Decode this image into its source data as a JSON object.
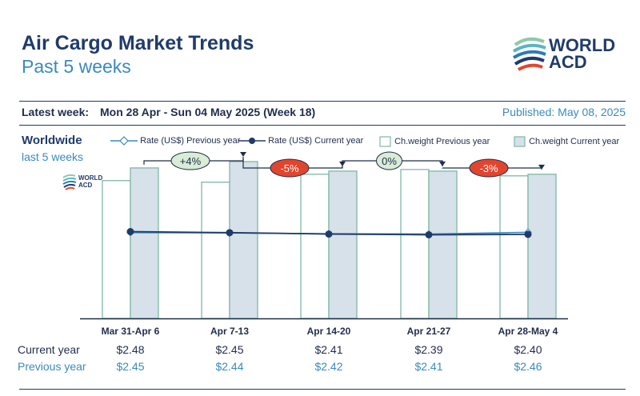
{
  "header": {
    "title": "Air Cargo Market Trends",
    "subtitle": "Past 5 weeks",
    "logo_text_line1": "WORLD",
    "logo_text_line2": "ACD",
    "latest_label": "Latest week:",
    "latest_value": "Mon 28 Apr - Sun 04 May 2025 (Week 18)",
    "published": "Published: May 08, 2025"
  },
  "side": {
    "region": "Worldwide",
    "period": "last 5 weeks"
  },
  "legend": {
    "rate_prev": "Rate (US$) Previous year",
    "rate_cur": "Rate (US$) Current year",
    "cw_prev": "Ch.weight Previous year",
    "cw_cur": "Ch.weight Current year"
  },
  "colors": {
    "navy": "#1f3b6b",
    "blue": "#3a8ac0",
    "bar_prev_fill": "#ffffff",
    "bar_cur_fill": "#d6e1ea",
    "bar_stroke": "#7fb8a0",
    "pos_badge": "#d9ecd4",
    "neg_badge": "#e2452e"
  },
  "table": {
    "current_label": "Current year",
    "previous_label": "Previous year"
  },
  "chart_data": {
    "type": "bar",
    "categories": [
      "Mar 31-Apr 6",
      "Apr 7-13",
      "Apr 14-20",
      "Apr 21-27",
      "Apr 28-May 4"
    ],
    "chargeable_weight_index": {
      "previous_year": [
        87,
        86,
        91,
        94,
        90
      ],
      "current_year": [
        95,
        99,
        93,
        93,
        91
      ]
    },
    "rate_current_year": [
      2.48,
      2.45,
      2.41,
      2.39,
      2.4
    ],
    "rate_previous_year": [
      2.45,
      2.44,
      2.42,
      2.41,
      2.46
    ],
    "rate_current_year_labels": [
      "$2.48",
      "$2.45",
      "$2.41",
      "$2.39",
      "$2.40"
    ],
    "rate_previous_year_labels": [
      "$2.45",
      "$2.44",
      "$2.42",
      "$2.41",
      "$2.46"
    ],
    "week_changes": [
      {
        "label": "+4%",
        "direction": "up"
      },
      {
        "label": "-5%",
        "direction": "down"
      },
      {
        "label": "0%",
        "direction": "flat"
      },
      {
        "label": "-3%",
        "direction": "down"
      }
    ],
    "ylim": [
      0,
      100
    ],
    "grid": false,
    "legend_position": "top"
  }
}
